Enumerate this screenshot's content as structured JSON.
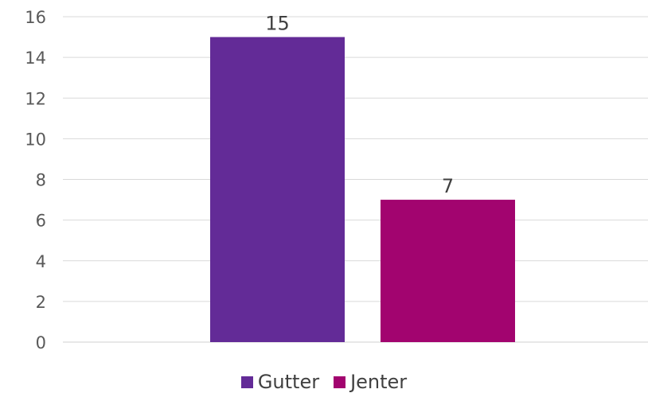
{
  "chart_data": {
    "type": "bar",
    "categories": [
      "Gutter",
      "Jenter"
    ],
    "values": [
      15,
      7
    ],
    "colors": [
      "#632B97",
      "#A2046F"
    ],
    "ylim": [
      0,
      16
    ],
    "yticks": [
      0,
      2,
      4,
      6,
      8,
      10,
      12,
      14,
      16
    ],
    "grid": true,
    "legend_position": "bottom",
    "legend": [
      "Gutter",
      "Jenter"
    ],
    "title": "",
    "xlabel": "",
    "ylabel": ""
  }
}
